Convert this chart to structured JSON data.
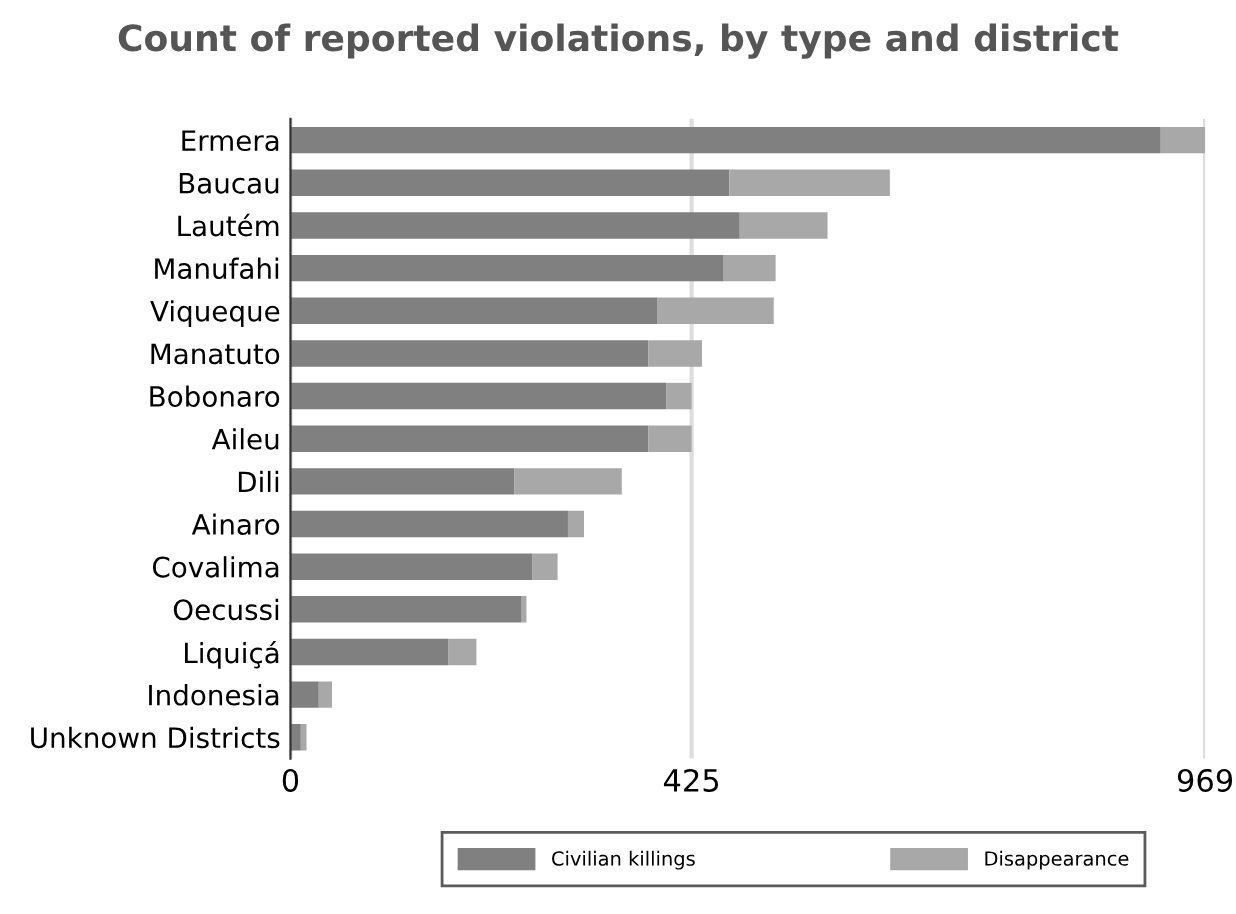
{
  "chart_data": {
    "type": "bar",
    "title": "Count of reported violations, by type and district",
    "orientation": "horizontal",
    "stacked": true,
    "categories": [
      "Ermera",
      "Baucau",
      "Lautém",
      "Manufahi",
      "Viqueque",
      "Manatuto",
      "Bobonaro",
      "Aileu",
      "Dili",
      "Ainaro",
      "Covalima",
      "Oecussi",
      "Liquiçá",
      "Indonesia",
      "Unknown Districts"
    ],
    "series": [
      {
        "name": "Civilian killings",
        "color": "#808080",
        "values": [
          922,
          465,
          476,
          459,
          389,
          379,
          398,
          379,
          237,
          294,
          256,
          245,
          167,
          30,
          11
        ]
      },
      {
        "name": "Disappearance",
        "color": "#a8a8a8",
        "values": [
          47,
          170,
          93,
          55,
          123,
          57,
          27,
          46,
          114,
          17,
          27,
          5,
          30,
          14,
          6
        ]
      }
    ],
    "xlim": [
      0,
      969
    ],
    "xticks": [
      0,
      425,
      969
    ],
    "grid": "x",
    "legend": "bottom"
  }
}
